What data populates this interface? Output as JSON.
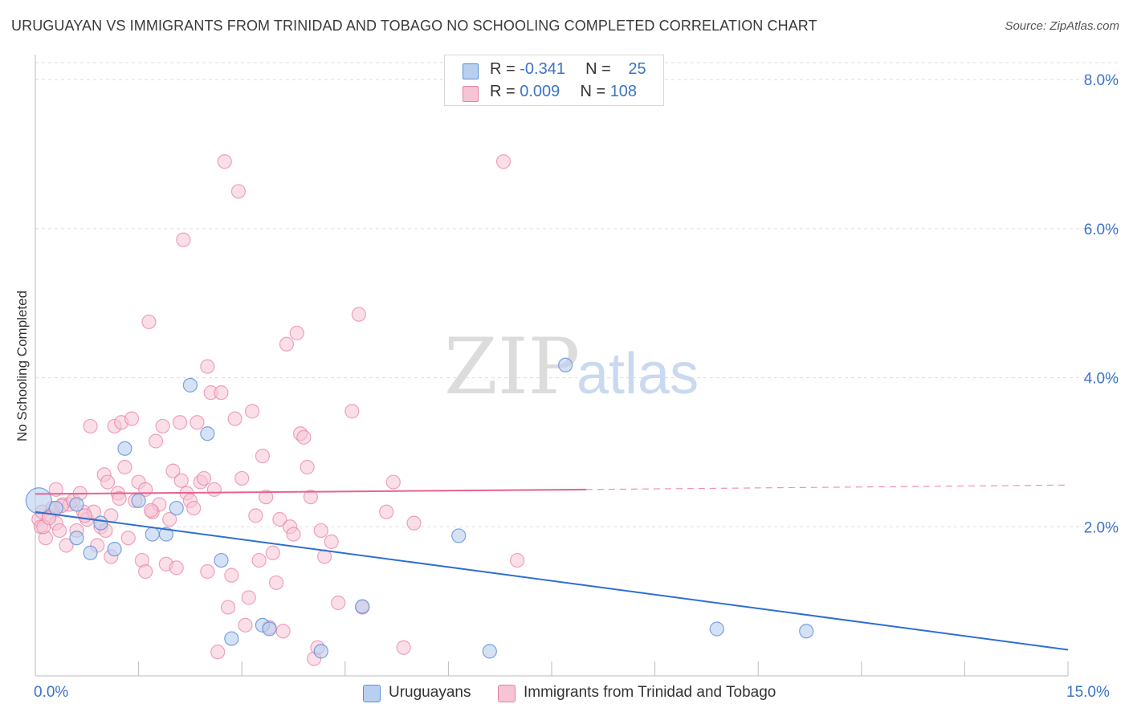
{
  "title": "URUGUAYAN VS IMMIGRANTS FROM TRINIDAD AND TOBAGO NO SCHOOLING COMPLETED CORRELATION CHART",
  "source": "Source: ZipAtlas.com",
  "watermark": {
    "zip": "ZIP",
    "atlas": "atlas"
  },
  "legend": {
    "rows": [
      {
        "r_label": "R = ",
        "r_value": "-0.341",
        "n_label": "N = ",
        "n_value": "25"
      },
      {
        "r_label": "R = ",
        "r_value": "0.009",
        "n_label": "N = ",
        "n_value": "108"
      }
    ]
  },
  "bottom_legend": {
    "series1": "Uruguayans",
    "series2": "Immigrants from Trinidad and Tobago"
  },
  "colors": {
    "blue": "#5b8fd6",
    "blue_fill": "#b9cff0",
    "blue_line": "#2f6fcf",
    "pink": "#e87fa3",
    "pink_fill": "#f6c4d5",
    "pink_line": "#e8628f",
    "accent_text": "#3b73c9"
  },
  "chart_data": {
    "type": "scatter",
    "title": "URUGUAYAN VS IMMIGRANTS FROM TRINIDAD AND TOBAGO NO SCHOOLING COMPLETED CORRELATION CHART",
    "xlabel": "",
    "ylabel": "No Schooling Completed",
    "xlim": [
      0,
      15
    ],
    "ylim": [
      0,
      8.4
    ],
    "x_tick_labels": [
      "0.0%",
      "15.0%"
    ],
    "y_ticks": [
      2,
      4,
      6,
      8
    ],
    "y_tick_labels": [
      "2.0%",
      "4.0%",
      "6.0%",
      "8.0%"
    ],
    "grid": true,
    "legend_position": "top-center",
    "series": [
      {
        "name": "Uruguayans",
        "r": -0.341,
        "n": 25,
        "trend": {
          "x": [
            0,
            15
          ],
          "y": [
            2.2,
            0.35
          ]
        },
        "points": [
          {
            "x": 0.05,
            "y": 2.35
          },
          {
            "x": 0.3,
            "y": 2.25
          },
          {
            "x": 0.6,
            "y": 2.3
          },
          {
            "x": 0.6,
            "y": 1.85
          },
          {
            "x": 0.8,
            "y": 1.65
          },
          {
            "x": 0.95,
            "y": 2.05
          },
          {
            "x": 1.15,
            "y": 1.7
          },
          {
            "x": 1.3,
            "y": 3.05
          },
          {
            "x": 1.5,
            "y": 2.35
          },
          {
            "x": 1.7,
            "y": 1.9
          },
          {
            "x": 1.9,
            "y": 1.9
          },
          {
            "x": 2.05,
            "y": 2.25
          },
          {
            "x": 2.25,
            "y": 3.9
          },
          {
            "x": 2.5,
            "y": 3.25
          },
          {
            "x": 2.7,
            "y": 1.55
          },
          {
            "x": 2.85,
            "y": 0.5
          },
          {
            "x": 3.3,
            "y": 0.68
          },
          {
            "x": 3.4,
            "y": 0.63
          },
          {
            "x": 4.15,
            "y": 0.33
          },
          {
            "x": 4.75,
            "y": 0.93
          },
          {
            "x": 6.15,
            "y": 1.88
          },
          {
            "x": 6.6,
            "y": 0.33
          },
          {
            "x": 7.7,
            "y": 4.17
          },
          {
            "x": 9.9,
            "y": 0.63
          },
          {
            "x": 11.2,
            "y": 0.6
          }
        ]
      },
      {
        "name": "Immigrants from Trinidad and Tobago",
        "r": 0.009,
        "n": 108,
        "trend": {
          "x": [
            0,
            8.0
          ],
          "y": [
            2.44,
            2.5
          ]
        },
        "trend_dashed": {
          "x": [
            8.0,
            15
          ],
          "y": [
            2.5,
            2.56
          ]
        },
        "points": [
          {
            "x": 0.05,
            "y": 2.1
          },
          {
            "x": 0.08,
            "y": 2.0
          },
          {
            "x": 0.1,
            "y": 2.2
          },
          {
            "x": 0.15,
            "y": 1.85
          },
          {
            "x": 0.2,
            "y": 2.15
          },
          {
            "x": 0.25,
            "y": 2.25
          },
          {
            "x": 0.3,
            "y": 2.05
          },
          {
            "x": 0.3,
            "y": 2.5
          },
          {
            "x": 0.35,
            "y": 1.95
          },
          {
            "x": 0.4,
            "y": 2.3
          },
          {
            "x": 0.45,
            "y": 1.75
          },
          {
            "x": 0.5,
            "y": 2.3
          },
          {
            "x": 0.55,
            "y": 2.35
          },
          {
            "x": 0.6,
            "y": 1.95
          },
          {
            "x": 0.65,
            "y": 2.45
          },
          {
            "x": 0.7,
            "y": 2.2
          },
          {
            "x": 0.75,
            "y": 2.1
          },
          {
            "x": 0.8,
            "y": 3.35
          },
          {
            "x": 0.85,
            "y": 2.2
          },
          {
            "x": 0.9,
            "y": 1.75
          },
          {
            "x": 0.95,
            "y": 2.0
          },
          {
            "x": 1.0,
            "y": 2.7
          },
          {
            "x": 1.05,
            "y": 2.6
          },
          {
            "x": 1.1,
            "y": 2.15
          },
          {
            "x": 1.1,
            "y": 1.6
          },
          {
            "x": 1.15,
            "y": 3.35
          },
          {
            "x": 1.2,
            "y": 2.45
          },
          {
            "x": 1.25,
            "y": 3.4
          },
          {
            "x": 1.3,
            "y": 2.8
          },
          {
            "x": 1.35,
            "y": 1.85
          },
          {
            "x": 1.4,
            "y": 3.45
          },
          {
            "x": 1.45,
            "y": 2.35
          },
          {
            "x": 1.5,
            "y": 2.6
          },
          {
            "x": 1.55,
            "y": 1.55
          },
          {
            "x": 1.6,
            "y": 1.4
          },
          {
            "x": 1.6,
            "y": 2.5
          },
          {
            "x": 1.65,
            "y": 4.75
          },
          {
            "x": 1.7,
            "y": 2.2
          },
          {
            "x": 1.75,
            "y": 3.15
          },
          {
            "x": 1.8,
            "y": 2.3
          },
          {
            "x": 1.85,
            "y": 3.35
          },
          {
            "x": 1.9,
            "y": 1.5
          },
          {
            "x": 1.95,
            "y": 2.1
          },
          {
            "x": 2.0,
            "y": 2.75
          },
          {
            "x": 2.05,
            "y": 1.45
          },
          {
            "x": 2.1,
            "y": 3.4
          },
          {
            "x": 2.15,
            "y": 5.85
          },
          {
            "x": 2.2,
            "y": 2.45
          },
          {
            "x": 2.25,
            "y": 2.35
          },
          {
            "x": 2.3,
            "y": 2.25
          },
          {
            "x": 2.35,
            "y": 3.4
          },
          {
            "x": 2.4,
            "y": 2.6
          },
          {
            "x": 2.45,
            "y": 2.65
          },
          {
            "x": 2.5,
            "y": 1.4
          },
          {
            "x": 2.5,
            "y": 4.15
          },
          {
            "x": 2.55,
            "y": 3.8
          },
          {
            "x": 2.6,
            "y": 2.5
          },
          {
            "x": 2.65,
            "y": 0.32
          },
          {
            "x": 2.7,
            "y": 3.8
          },
          {
            "x": 2.75,
            "y": 6.9
          },
          {
            "x": 2.8,
            "y": 0.92
          },
          {
            "x": 2.85,
            "y": 1.35
          },
          {
            "x": 2.9,
            "y": 3.45
          },
          {
            "x": 2.95,
            "y": 6.5
          },
          {
            "x": 3.0,
            "y": 2.65
          },
          {
            "x": 3.05,
            "y": 0.68
          },
          {
            "x": 3.1,
            "y": 1.05
          },
          {
            "x": 3.15,
            "y": 3.55
          },
          {
            "x": 3.2,
            "y": 2.15
          },
          {
            "x": 3.25,
            "y": 1.55
          },
          {
            "x": 3.3,
            "y": 2.95
          },
          {
            "x": 3.35,
            "y": 2.4
          },
          {
            "x": 3.4,
            "y": 0.65
          },
          {
            "x": 3.45,
            "y": 1.65
          },
          {
            "x": 3.5,
            "y": 1.25
          },
          {
            "x": 3.55,
            "y": 2.1
          },
          {
            "x": 3.6,
            "y": 0.6
          },
          {
            "x": 3.65,
            "y": 4.45
          },
          {
            "x": 3.7,
            "y": 2.0
          },
          {
            "x": 3.75,
            "y": 1.9
          },
          {
            "x": 3.8,
            "y": 4.6
          },
          {
            "x": 3.85,
            "y": 3.25
          },
          {
            "x": 3.9,
            "y": 3.2
          },
          {
            "x": 3.95,
            "y": 2.8
          },
          {
            "x": 4.0,
            "y": 2.4
          },
          {
            "x": 4.05,
            "y": 0.23
          },
          {
            "x": 4.1,
            "y": 0.38
          },
          {
            "x": 4.15,
            "y": 1.95
          },
          {
            "x": 4.2,
            "y": 1.6
          },
          {
            "x": 4.3,
            "y": 1.8
          },
          {
            "x": 4.4,
            "y": 0.98
          },
          {
            "x": 4.6,
            "y": 3.55
          },
          {
            "x": 4.7,
            "y": 4.85
          },
          {
            "x": 4.75,
            "y": 0.92
          },
          {
            "x": 5.1,
            "y": 2.2
          },
          {
            "x": 5.2,
            "y": 2.6
          },
          {
            "x": 5.35,
            "y": 0.38
          },
          {
            "x": 5.5,
            "y": 2.05
          },
          {
            "x": 6.8,
            "y": 6.9
          },
          {
            "x": 7.0,
            "y": 1.55
          },
          {
            "x": 0.12,
            "y": 2.0
          },
          {
            "x": 0.2,
            "y": 2.12
          },
          {
            "x": 0.38,
            "y": 2.28
          },
          {
            "x": 0.72,
            "y": 2.15
          },
          {
            "x": 1.02,
            "y": 1.95
          },
          {
            "x": 1.22,
            "y": 2.38
          },
          {
            "x": 1.68,
            "y": 2.22
          },
          {
            "x": 2.12,
            "y": 2.62
          }
        ]
      }
    ]
  }
}
